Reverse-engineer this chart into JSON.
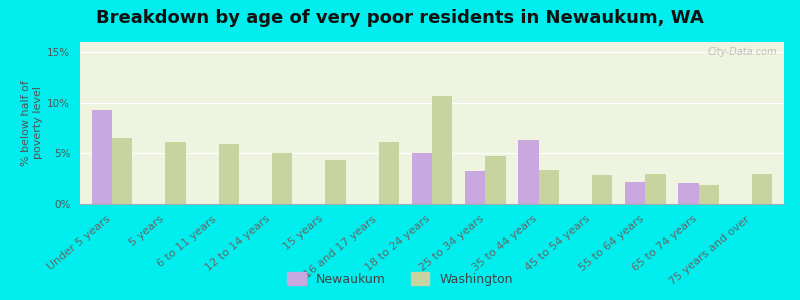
{
  "title": "Breakdown by age of very poor residents in Newaukum, WA",
  "ylabel": "% below half of\npoverty level",
  "categories": [
    "Under 5 years",
    "5 years",
    "6 to 11 years",
    "12 to 14 years",
    "15 years",
    "16 and 17 years",
    "18 to 24 years",
    "25 to 34 years",
    "35 to 44 years",
    "45 to 54 years",
    "55 to 64 years",
    "65 to 74 years",
    "75 years and over"
  ],
  "newaukum": [
    9.3,
    0.0,
    0.0,
    0.0,
    0.0,
    0.0,
    5.0,
    3.3,
    6.3,
    0.0,
    2.2,
    2.1,
    0.0
  ],
  "washington": [
    6.5,
    6.1,
    5.9,
    5.0,
    4.3,
    6.1,
    10.7,
    4.7,
    3.4,
    2.9,
    3.0,
    1.9,
    3.0
  ],
  "newaukum_color": "#c9a8e0",
  "washington_color": "#c8d4a0",
  "background_color": "#00eeee",
  "plot_bg_color": "#eef4df",
  "ylim": [
    0,
    16
  ],
  "yticks": [
    0,
    5,
    10,
    15
  ],
  "ytick_labels": [
    "0%",
    "5%",
    "10%",
    "15%"
  ],
  "title_fontsize": 13,
  "axis_label_fontsize": 8,
  "tick_fontsize": 7.5,
  "legend_fontsize": 9,
  "bar_width": 0.38
}
